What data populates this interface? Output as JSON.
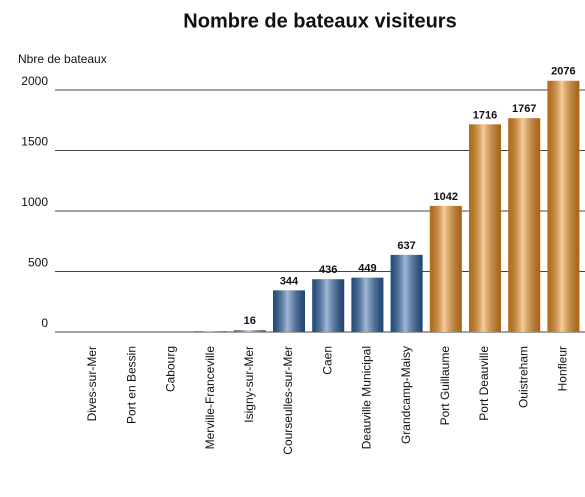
{
  "chart_data": {
    "type": "bar",
    "title": "Nombre de bateaux visiteurs",
    "y_label": "Nbre de bateaux",
    "categories": [
      "Dives-sur-Mer",
      "Port en Bessin",
      "Cabourg",
      "Merville-Franceville",
      "Isigny-sur-Mer",
      "Courseulles-sur-Mer",
      "Caen",
      "Deauville Municipal",
      "Grandcamp-Maisy",
      "Port Guillaume",
      "Port Deauville",
      "Ouistreham",
      "Honfleur"
    ],
    "values": [
      0,
      0,
      0,
      8,
      16,
      344,
      436,
      449,
      637,
      1042,
      1716,
      1767,
      2076
    ],
    "value_labels": [
      null,
      null,
      null,
      null,
      "16",
      "344",
      "436",
      "449",
      "637",
      "1042",
      "1716",
      "1767",
      "2076"
    ],
    "colors": [
      "#3b6fae",
      "#3b6fae",
      "#3b6fae",
      "#8aa6c8",
      "#7d9cc4",
      "#2f64a6",
      "#2f64a6",
      "#2f64a6",
      "#2f64a6",
      "#f0901e",
      "#f0901e",
      "#f0901e",
      "#f0901e"
    ],
    "ylim": [
      0,
      2000
    ],
    "yticks": [
      0,
      500,
      1000,
      1500,
      2000
    ],
    "grid": true
  }
}
